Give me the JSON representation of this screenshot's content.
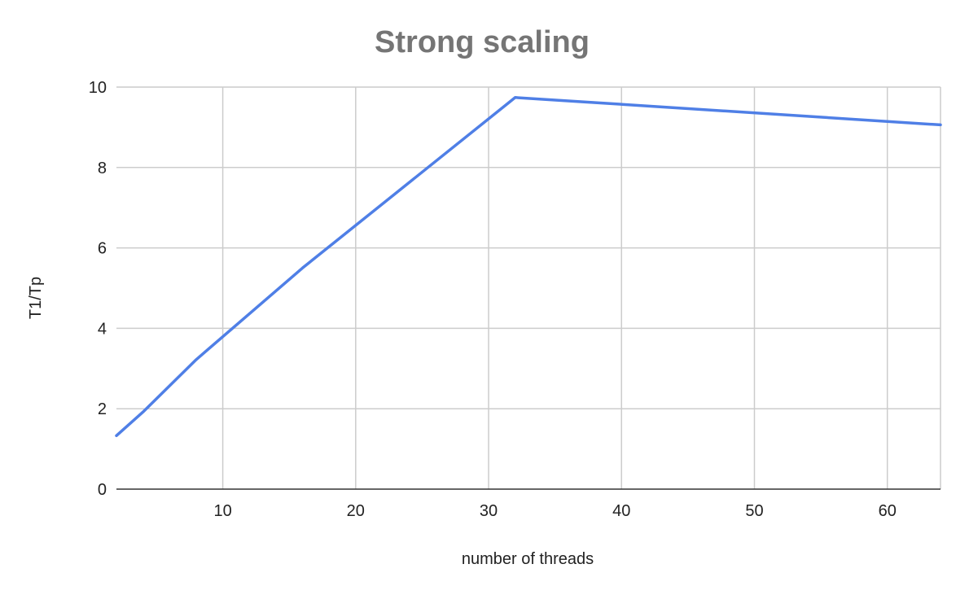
{
  "chart_data": {
    "type": "line",
    "title": "Strong scaling",
    "xlabel": "number of threads",
    "ylabel": "T1/Tp",
    "xlim": [
      2,
      64
    ],
    "ylim": [
      0,
      10
    ],
    "xticks": [
      10,
      20,
      30,
      40,
      50,
      60
    ],
    "yticks": [
      0,
      2,
      4,
      6,
      8,
      10
    ],
    "grid": true,
    "series": [
      {
        "color": "#4f7fe6",
        "x": [
          2,
          4,
          8,
          16,
          32,
          64
        ],
        "y": [
          1.33,
          1.92,
          3.22,
          5.5,
          9.74,
          9.06
        ]
      }
    ]
  }
}
